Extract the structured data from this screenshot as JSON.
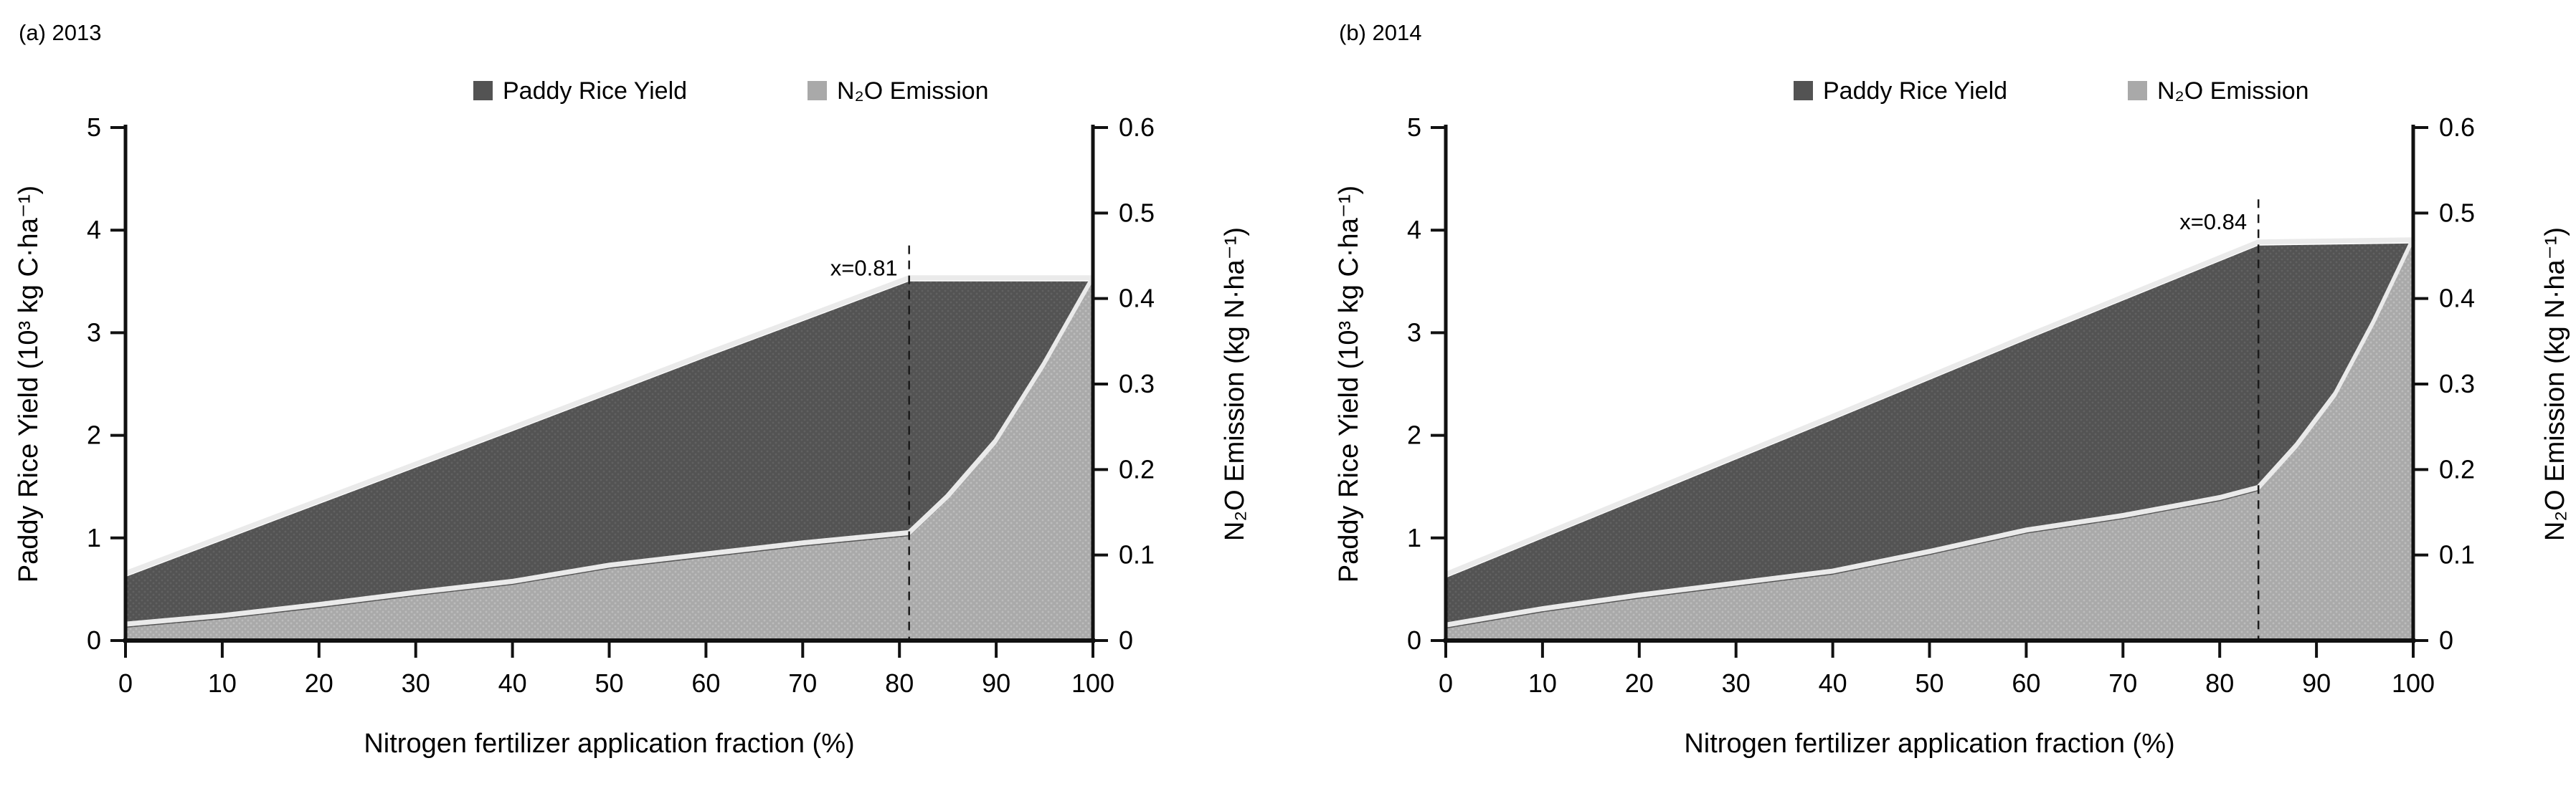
{
  "colors": {
    "yield_fill": "#535353",
    "yield_dot": "#616161",
    "emission_fill": "#a9a9a9",
    "emission_dot": "#bcbcbc",
    "edge_halo": "#eaeaea",
    "axis": "#111111",
    "dashed_line": "#1a1a1a"
  },
  "chart_data": [
    {
      "type": "area",
      "panel_label": "(a) 2013",
      "legend": [
        {
          "label": "Paddy Rice Yield",
          "color_key": "yield_fill"
        },
        {
          "label": "N₂O Emission",
          "color_key": "emission_fill"
        }
      ],
      "x_axis": {
        "title": "Nitrogen fertilizer application fraction (%)",
        "min": 0,
        "max": 100,
        "ticks": [
          "0",
          "10",
          "20",
          "30",
          "40",
          "50",
          "60",
          "70",
          "80",
          "90",
          "100"
        ]
      },
      "y_left": {
        "title": "Paddy Rice Yield (10³ kg C·ha⁻¹)",
        "min": 0,
        "max": 5,
        "ticks": [
          "0",
          "1",
          "2",
          "3",
          "4",
          "5"
        ]
      },
      "y_right": {
        "title": "N₂O Emission (kg N·ha⁻¹)",
        "min": 0,
        "max": 0.6,
        "ticks": [
          "0",
          "0.1",
          "0.2",
          "0.3",
          "0.4",
          "0.5",
          "0.6"
        ]
      },
      "annotation": {
        "label": "x=0.81",
        "x": 81,
        "line_top": 3.85
      },
      "series": [
        {
          "name": "Paddy Rice Yield",
          "axis": "left",
          "points": [
            [
              0,
              0.62
            ],
            [
              20,
              1.33
            ],
            [
              40,
              2.04
            ],
            [
              60,
              2.76
            ],
            [
              81,
              3.5
            ],
            [
              90,
              3.5
            ],
            [
              100,
              3.5
            ]
          ]
        },
        {
          "name": "N₂O Emission",
          "axis": "right",
          "points": [
            [
              0,
              0.015
            ],
            [
              10,
              0.025
            ],
            [
              20,
              0.038
            ],
            [
              30,
              0.052
            ],
            [
              40,
              0.065
            ],
            [
              50,
              0.084
            ],
            [
              60,
              0.097
            ],
            [
              70,
              0.11
            ],
            [
              81,
              0.122
            ],
            [
              85,
              0.165
            ],
            [
              90,
              0.23
            ],
            [
              95,
              0.32
            ],
            [
              100,
              0.42
            ]
          ]
        }
      ]
    },
    {
      "type": "area",
      "panel_label": "(b) 2014",
      "legend": [
        {
          "label": "Paddy Rice Yield",
          "color_key": "yield_fill"
        },
        {
          "label": "N₂O Emission",
          "color_key": "emission_fill"
        }
      ],
      "x_axis": {
        "title": "Nitrogen fertilizer application fraction (%)",
        "min": 0,
        "max": 100,
        "ticks": [
          "0",
          "10",
          "20",
          "30",
          "40",
          "50",
          "60",
          "70",
          "80",
          "90",
          "100"
        ]
      },
      "y_left": {
        "title": "Paddy Rice Yield (10³ kg C·ha⁻¹)",
        "min": 0,
        "max": 5,
        "ticks": [
          "0",
          "1",
          "2",
          "3",
          "4",
          "5"
        ]
      },
      "y_right": {
        "title": "N₂O Emission (kg N·ha⁻¹)",
        "min": 0,
        "max": 0.6,
        "ticks": [
          "0",
          "0.1",
          "0.2",
          "0.3",
          "0.4",
          "0.5",
          "0.6"
        ]
      },
      "annotation": {
        "label": "x=0.84",
        "x": 84,
        "line_top": 4.3
      },
      "series": [
        {
          "name": "Paddy Rice Yield",
          "axis": "left",
          "points": [
            [
              0,
              0.61
            ],
            [
              20,
              1.38
            ],
            [
              40,
              2.15
            ],
            [
              60,
              2.93
            ],
            [
              84,
              3.85
            ],
            [
              100,
              3.87
            ]
          ]
        },
        {
          "name": "N₂O Emission",
          "axis": "right",
          "points": [
            [
              0,
              0.014
            ],
            [
              10,
              0.033
            ],
            [
              20,
              0.049
            ],
            [
              30,
              0.063
            ],
            [
              40,
              0.077
            ],
            [
              50,
              0.1
            ],
            [
              60,
              0.125
            ],
            [
              70,
              0.142
            ],
            [
              80,
              0.163
            ],
            [
              84,
              0.175
            ],
            [
              88,
              0.225
            ],
            [
              92,
              0.285
            ],
            [
              96,
              0.37
            ],
            [
              100,
              0.465
            ]
          ]
        }
      ]
    }
  ]
}
